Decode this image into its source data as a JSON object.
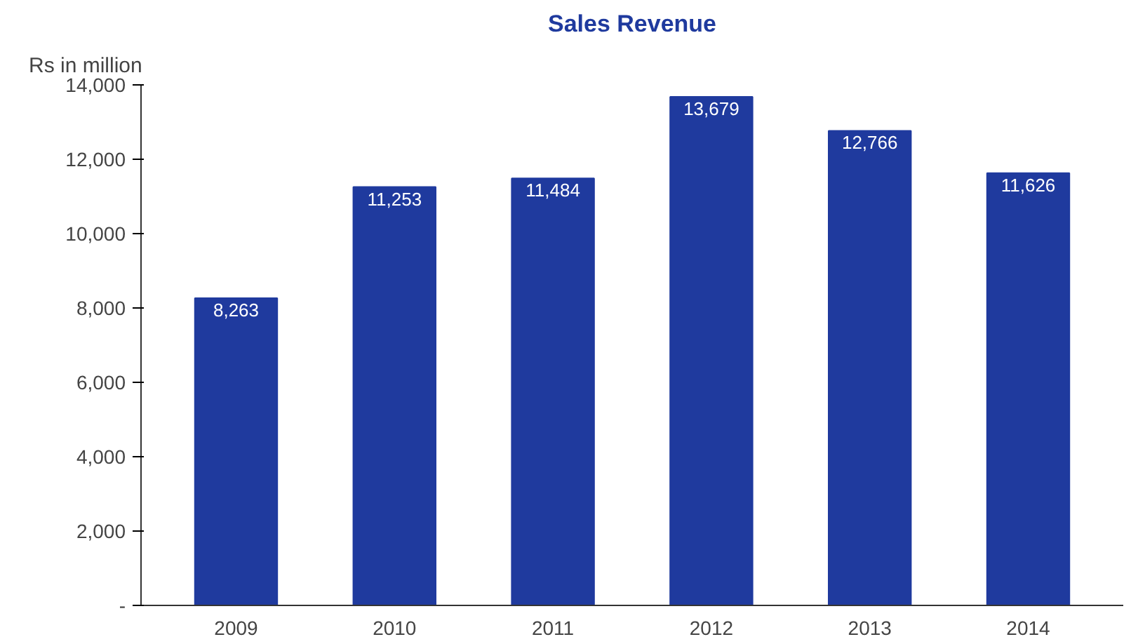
{
  "chart_data": {
    "type": "bar",
    "title": "Sales Revenue",
    "ylabel": "Rs in million",
    "categories": [
      "2009",
      "2010",
      "2011",
      "2012",
      "2013",
      "2014"
    ],
    "values": [
      8263,
      11253,
      11484,
      13679,
      12766,
      11626
    ],
    "value_labels": [
      "8,263",
      "11,253",
      "11,484",
      "13,679",
      "12,766",
      "11,626"
    ],
    "color": "#1f3a9e",
    "ylim": [
      0,
      14000
    ],
    "yticks": [
      {
        "value": 0,
        "label": "-"
      },
      {
        "value": 2000,
        "label": "2,000"
      },
      {
        "value": 4000,
        "label": "4,000"
      },
      {
        "value": 6000,
        "label": "6,000"
      },
      {
        "value": 8000,
        "label": "8,000"
      },
      {
        "value": 10000,
        "label": "10,000"
      },
      {
        "value": 12000,
        "label": "12,000"
      },
      {
        "value": 14000,
        "label": "14,000"
      }
    ],
    "grid": false
  }
}
